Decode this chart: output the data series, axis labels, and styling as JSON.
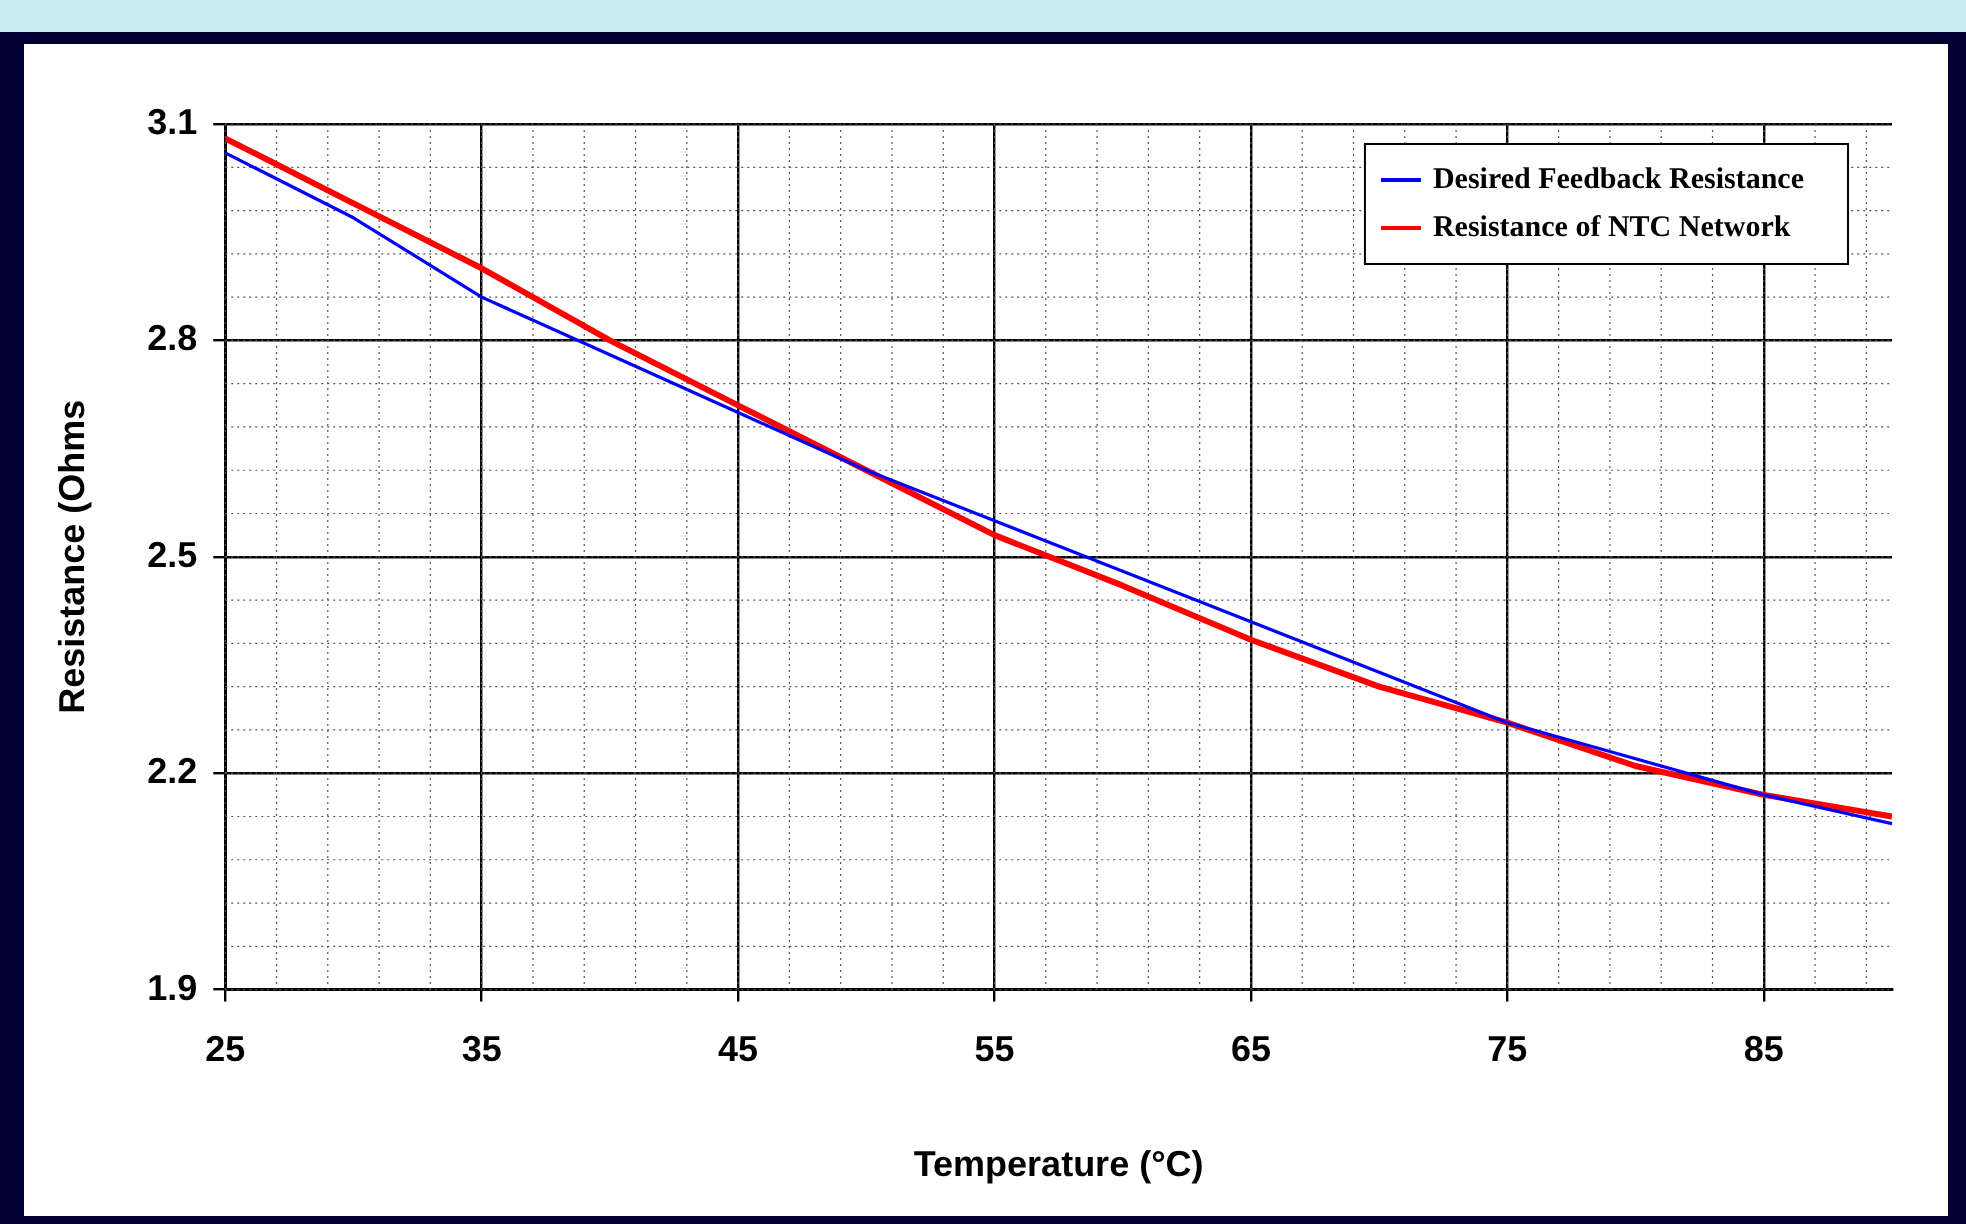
{
  "chart_data": {
    "type": "line",
    "xlabel": "Temperature (°C)",
    "ylabel": "Resistance (Ohms",
    "x": [
      25,
      30,
      35,
      40,
      45,
      50,
      55,
      60,
      65,
      70,
      75,
      80,
      85,
      90
    ],
    "series": [
      {
        "name": "Desired Feedback Resistance",
        "color": "#0000ff",
        "values": [
          3.06,
          2.97,
          2.86,
          2.78,
          2.7,
          2.62,
          2.55,
          2.48,
          2.41,
          2.34,
          2.27,
          2.22,
          2.17,
          2.13
        ]
      },
      {
        "name": "Resistance of NTC Network",
        "color": "#ff0000",
        "values": [
          3.08,
          2.99,
          2.9,
          2.8,
          2.71,
          2.62,
          2.53,
          2.46,
          2.385,
          2.32,
          2.27,
          2.21,
          2.17,
          2.14
        ]
      }
    ],
    "xlim": [
      25,
      90
    ],
    "xticks": [
      25,
      35,
      45,
      55,
      65,
      75,
      85
    ],
    "ylim": [
      1.9,
      3.1
    ],
    "yticks": [
      1.9,
      2.2,
      2.5,
      2.8,
      3.1
    ],
    "grid": true,
    "legend": "top right",
    "marker": "none",
    "line_style": "solid"
  }
}
